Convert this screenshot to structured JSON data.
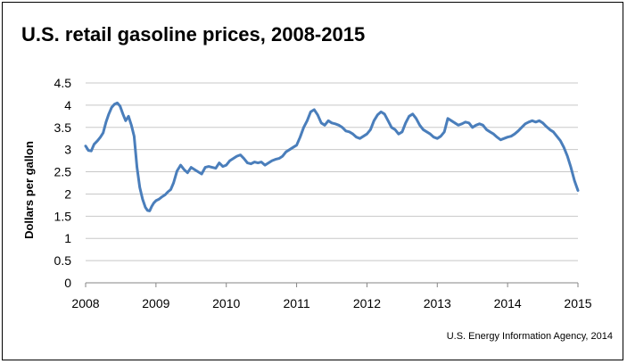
{
  "chart_data": {
    "type": "line",
    "title": "U.S. retail gasoline prices, 2008-2015",
    "xlabel": "",
    "ylabel": "Dollars per gallon",
    "source": "U.S. Energy Information Agency, 2014",
    "xlim": [
      2008,
      2015
    ],
    "ylim": [
      0,
      4.5
    ],
    "x_ticks": [
      "2008",
      "2009",
      "2010",
      "2011",
      "2012",
      "2013",
      "2014",
      "2015"
    ],
    "y_ticks": [
      "0",
      "0.5",
      "1",
      "1.5",
      "2",
      "2.5",
      "3",
      "3.5",
      "4",
      "4.5"
    ],
    "grid": "horizontal",
    "line_color": "#4a7ebb",
    "series": [
      {
        "x": [
          2008.0,
          2008.04,
          2008.08,
          2008.12,
          2008.17,
          2008.21,
          2008.25,
          2008.29,
          2008.33,
          2008.37,
          2008.41,
          2008.45,
          2008.49,
          2008.53,
          2008.57,
          2008.61,
          2008.65,
          2008.69,
          2008.73,
          2008.77,
          2008.81,
          2008.85,
          2008.88,
          2008.91,
          2008.94,
          2008.97,
          2009.0,
          2009.04,
          2009.08,
          2009.13,
          2009.17,
          2009.21,
          2009.25,
          2009.3,
          2009.35,
          2009.4,
          2009.45,
          2009.5,
          2009.55,
          2009.6,
          2009.65,
          2009.7,
          2009.75,
          2009.8,
          2009.85,
          2009.9,
          2009.95,
          2010.0,
          2010.05,
          2010.1,
          2010.15,
          2010.2,
          2010.25,
          2010.3,
          2010.35,
          2010.4,
          2010.45,
          2010.5,
          2010.55,
          2010.6,
          2010.65,
          2010.7,
          2010.75,
          2010.8,
          2010.85,
          2010.9,
          2010.95,
          2011.0,
          2011.05,
          2011.1,
          2011.15,
          2011.2,
          2011.25,
          2011.3,
          2011.35,
          2011.4,
          2011.45,
          2011.5,
          2011.55,
          2011.6,
          2011.65,
          2011.7,
          2011.75,
          2011.8,
          2011.85,
          2011.9,
          2011.95,
          2012.0,
          2012.05,
          2012.1,
          2012.15,
          2012.2,
          2012.25,
          2012.3,
          2012.35,
          2012.4,
          2012.45,
          2012.5,
          2012.55,
          2012.6,
          2012.65,
          2012.7,
          2012.75,
          2012.8,
          2012.85,
          2012.9,
          2012.95,
          2013.0,
          2013.05,
          2013.1,
          2013.15,
          2013.2,
          2013.25,
          2013.3,
          2013.35,
          2013.4,
          2013.45,
          2013.5,
          2013.55,
          2013.6,
          2013.65,
          2013.7,
          2013.75,
          2013.8,
          2013.85,
          2013.9,
          2013.95,
          2014.0,
          2014.05,
          2014.1,
          2014.15,
          2014.2,
          2014.25,
          2014.3,
          2014.35,
          2014.4,
          2014.45,
          2014.5,
          2014.55,
          2014.6,
          2014.65,
          2014.7,
          2014.75,
          2014.8,
          2014.85,
          2014.9,
          2014.95,
          2015.0
        ],
        "values": [
          3.08,
          2.98,
          2.97,
          3.12,
          3.2,
          3.28,
          3.38,
          3.62,
          3.8,
          3.95,
          4.02,
          4.05,
          3.98,
          3.8,
          3.65,
          3.75,
          3.55,
          3.3,
          2.6,
          2.15,
          1.88,
          1.7,
          1.63,
          1.62,
          1.72,
          1.8,
          1.85,
          1.88,
          1.93,
          1.98,
          2.05,
          2.1,
          2.25,
          2.52,
          2.65,
          2.55,
          2.48,
          2.6,
          2.55,
          2.5,
          2.45,
          2.6,
          2.62,
          2.6,
          2.58,
          2.7,
          2.62,
          2.65,
          2.75,
          2.8,
          2.85,
          2.88,
          2.8,
          2.7,
          2.68,
          2.72,
          2.7,
          2.72,
          2.65,
          2.7,
          2.75,
          2.78,
          2.8,
          2.85,
          2.95,
          3.0,
          3.05,
          3.1,
          3.28,
          3.5,
          3.65,
          3.85,
          3.9,
          3.78,
          3.6,
          3.55,
          3.65,
          3.6,
          3.58,
          3.55,
          3.5,
          3.42,
          3.4,
          3.35,
          3.28,
          3.25,
          3.3,
          3.35,
          3.45,
          3.65,
          3.78,
          3.85,
          3.8,
          3.65,
          3.5,
          3.45,
          3.35,
          3.4,
          3.6,
          3.75,
          3.8,
          3.7,
          3.55,
          3.45,
          3.4,
          3.35,
          3.28,
          3.25,
          3.3,
          3.4,
          3.7,
          3.65,
          3.6,
          3.55,
          3.58,
          3.62,
          3.6,
          3.5,
          3.55,
          3.58,
          3.55,
          3.45,
          3.4,
          3.35,
          3.28,
          3.22,
          3.25,
          3.28,
          3.3,
          3.35,
          3.42,
          3.5,
          3.58,
          3.62,
          3.65,
          3.62,
          3.65,
          3.6,
          3.52,
          3.45,
          3.4,
          3.3,
          3.2,
          3.05,
          2.85,
          2.6,
          2.3,
          2.08
        ]
      }
    ]
  }
}
